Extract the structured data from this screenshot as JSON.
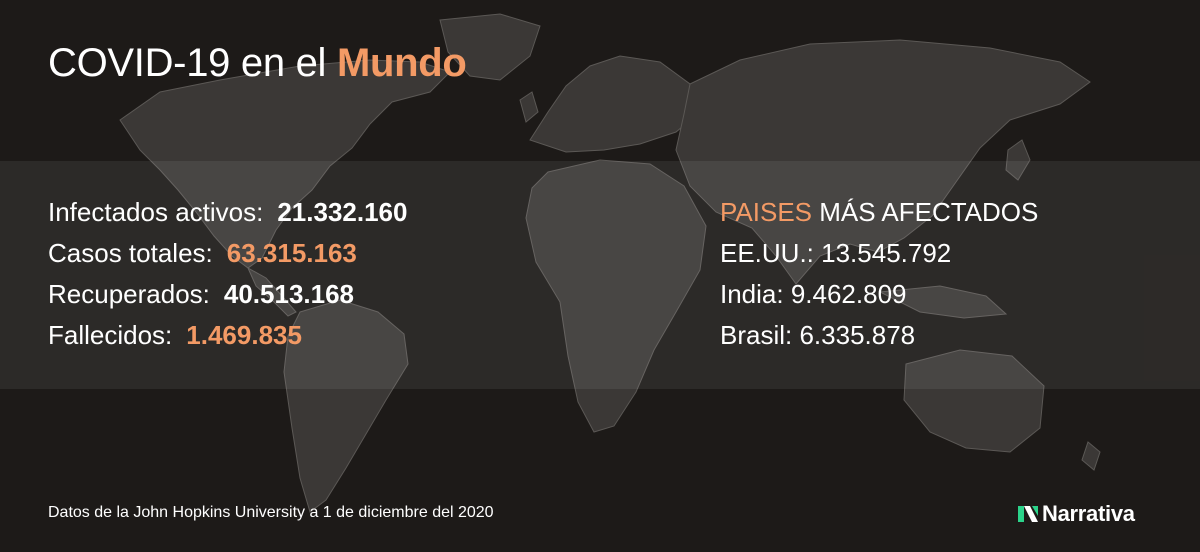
{
  "header": {
    "title_prefix": "COVID-19 en el",
    "title_accent": "Mundo"
  },
  "stats": [
    {
      "label": "Infectados activos:",
      "value": "21.332.160",
      "color": "#ffffff"
    },
    {
      "label": "Casos totales:",
      "value": "63.315.163",
      "color": "#f39a65"
    },
    {
      "label": "Recuperados:",
      "value": "40.513.168",
      "color": "#ffffff"
    },
    {
      "label": "Fallecidos:",
      "value": "1.469.835",
      "color": "#f39a65"
    }
  ],
  "countries": {
    "heading_highlight": "PAISES",
    "heading_rest": "MÁS AFECTADOS",
    "items": [
      {
        "text": "EE.UU.: 13.545.792"
      },
      {
        "text": "India: 9.462.809"
      },
      {
        "text": "Brasil: 6.335.878"
      }
    ]
  },
  "footer": {
    "source": "Datos de la John Hopkins University a 1 de diciembre del 2020",
    "brand": "Narrativa"
  },
  "colors": {
    "background": "#1d1a18",
    "accent": "#f39a65",
    "land": "#3b3836",
    "borders": "#5b5855",
    "logo_green": "#2bd38a"
  }
}
